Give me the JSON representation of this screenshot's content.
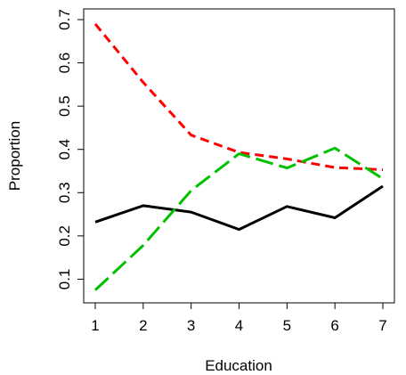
{
  "chart_data": {
    "type": "line",
    "title": "",
    "xlabel": "Education",
    "ylabel": "Proportion",
    "x": [
      1,
      2,
      3,
      4,
      5,
      6,
      7
    ],
    "xlim": [
      1,
      7
    ],
    "ylim": [
      0.07,
      0.7
    ],
    "xticks": [
      "1",
      "2",
      "3",
      "4",
      "5",
      "6",
      "7"
    ],
    "yticks": [
      0.1,
      0.2,
      0.3,
      0.4,
      0.5,
      0.6,
      0.7
    ],
    "ytick_labels": [
      "0.1",
      "0.2",
      "0.3",
      "0.4",
      "0.5",
      "0.6",
      "0.7"
    ],
    "grid": false,
    "legend": "none",
    "series": [
      {
        "values": [
          0.232,
          0.27,
          0.255,
          0.215,
          0.268,
          0.242,
          0.315
        ],
        "color": "#000000",
        "dash": "solid"
      },
      {
        "values": [
          0.69,
          0.555,
          0.433,
          0.393,
          0.378,
          0.358,
          0.353
        ],
        "color": "#ff0000",
        "dash": "dashed"
      },
      {
        "values": [
          0.075,
          0.178,
          0.305,
          0.39,
          0.357,
          0.403,
          0.332
        ],
        "color": "#00c000",
        "dash": "longdash"
      }
    ]
  }
}
